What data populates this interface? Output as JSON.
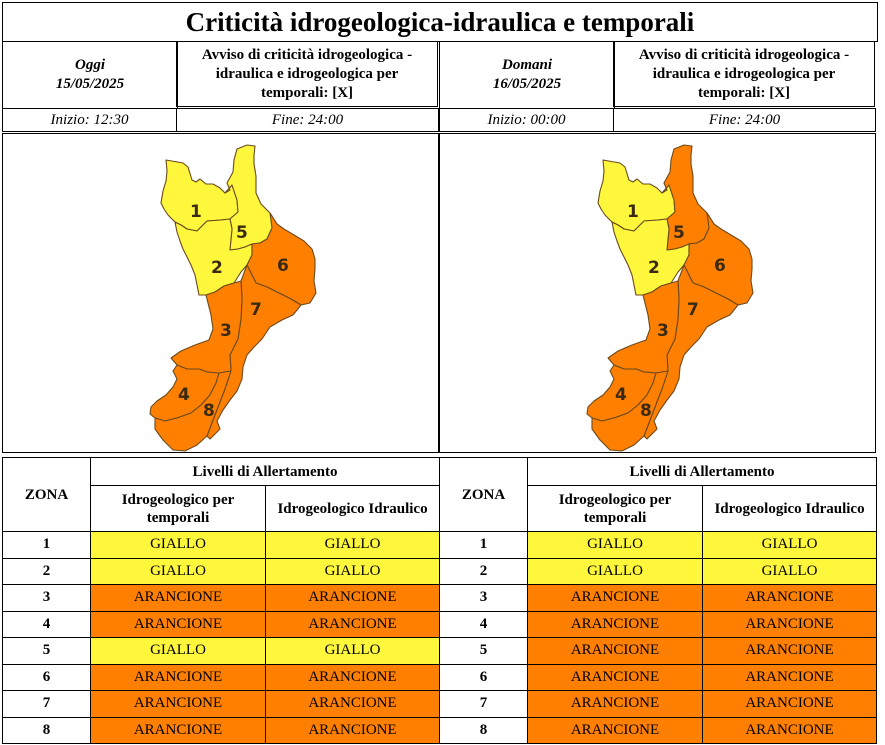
{
  "title": "Criticità idrogeologica-idraulica e temporali",
  "colors": {
    "giallo": "#fff73b",
    "arancione": "#ff7f00"
  },
  "panels": [
    {
      "day_label": "Oggi",
      "date": "15/05/2025",
      "notice": "Avviso di criticità idrogeologica - idraulica e idrogeologica per temporali: [X]",
      "start": "Inizio: 12:30",
      "end": "Fine: 24:00",
      "table": {
        "zone_header": "ZONA",
        "levels_header": "Livelli di Allertamento",
        "col1_header": "Idrogeologico per temporali",
        "col2_header": "Idrogeologico Idraulico",
        "rows": [
          {
            "zone": "1",
            "temporali": "GIALLO",
            "idraulico": "GIALLO"
          },
          {
            "zone": "2",
            "temporali": "GIALLO",
            "idraulico": "GIALLO"
          },
          {
            "zone": "3",
            "temporali": "ARANCIONE",
            "idraulico": "ARANCIONE"
          },
          {
            "zone": "4",
            "temporali": "ARANCIONE",
            "idraulico": "ARANCIONE"
          },
          {
            "zone": "5",
            "temporali": "GIALLO",
            "idraulico": "GIALLO"
          },
          {
            "zone": "6",
            "temporali": "ARANCIONE",
            "idraulico": "ARANCIONE"
          },
          {
            "zone": "7",
            "temporali": "ARANCIONE",
            "idraulico": "ARANCIONE"
          },
          {
            "zone": "8",
            "temporali": "ARANCIONE",
            "idraulico": "ARANCIONE"
          }
        ]
      }
    },
    {
      "day_label": "Domani",
      "date": "16/05/2025",
      "notice": "Avviso di criticità idrogeologica - idraulica e idrogeologica per temporali: [X]",
      "start": "Inizio: 00:00",
      "end": "Fine: 24:00",
      "table": {
        "zone_header": "ZONA",
        "levels_header": "Livelli di Allertamento",
        "col1_header": "Idrogeologico per temporali",
        "col2_header": "Idrogeologico Idraulico",
        "rows": [
          {
            "zone": "1",
            "temporali": "GIALLO",
            "idraulico": "GIALLO"
          },
          {
            "zone": "2",
            "temporali": "GIALLO",
            "idraulico": "GIALLO"
          },
          {
            "zone": "3",
            "temporali": "ARANCIONE",
            "idraulico": "ARANCIONE"
          },
          {
            "zone": "4",
            "temporali": "ARANCIONE",
            "idraulico": "ARANCIONE"
          },
          {
            "zone": "5",
            "temporali": "ARANCIONE",
            "idraulico": "ARANCIONE"
          },
          {
            "zone": "6",
            "temporali": "ARANCIONE",
            "idraulico": "ARANCIONE"
          },
          {
            "zone": "7",
            "temporali": "ARANCIONE",
            "idraulico": "ARANCIONE"
          },
          {
            "zone": "8",
            "temporali": "ARANCIONE",
            "idraulico": "ARANCIONE"
          }
        ]
      }
    }
  ]
}
